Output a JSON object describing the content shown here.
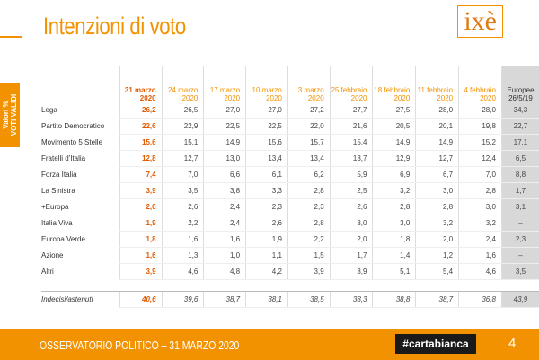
{
  "header": {
    "title": "Intenzioni di voto",
    "logo": "ixè"
  },
  "side_label": [
    "Valori %",
    "VOTI VALIDI"
  ],
  "table": {
    "columns": [
      "31 marzo 2020",
      "24 marzo 2020",
      "17 marzo 2020",
      "10 marzo 2020",
      "3 marzo 2020",
      "25 febbraio 2020",
      "18 febbraio 2020",
      "11 febbraio 2020",
      "4 febbraio 2020",
      "Europee 26/5/19"
    ],
    "rows": [
      {
        "label": "Lega",
        "values": [
          "26,2",
          "26,5",
          "27,0",
          "27,0",
          "27,2",
          "27,7",
          "27,5",
          "28,0",
          "28,0",
          "34,3"
        ]
      },
      {
        "label": "Partito Democratico",
        "values": [
          "22,6",
          "22,9",
          "22,5",
          "22,5",
          "22,0",
          "21,6",
          "20,5",
          "20,1",
          "19,8",
          "22,7"
        ]
      },
      {
        "label": "Movimento 5 Stelle",
        "values": [
          "15,6",
          "15,1",
          "14,9",
          "15,6",
          "15,7",
          "15,4",
          "14,9",
          "14,9",
          "15,2",
          "17,1"
        ]
      },
      {
        "label": "Fratelli d'Italia",
        "values": [
          "12,8",
          "12,7",
          "13,0",
          "13,4",
          "13,4",
          "13,7",
          "12,9",
          "12,7",
          "12,4",
          "6,5"
        ]
      },
      {
        "label": "Forza Italia",
        "values": [
          "7,4",
          "7,0",
          "6,6",
          "6,1",
          "6,2",
          "5,9",
          "6,9",
          "6,7",
          "7,0",
          "8,8"
        ]
      },
      {
        "label": "La Sinistra",
        "values": [
          "3,9",
          "3,5",
          "3,8",
          "3,3",
          "2,8",
          "2,5",
          "3,2",
          "3,0",
          "2,8",
          "1,7"
        ]
      },
      {
        "label": "+Europa",
        "values": [
          "2,0",
          "2,6",
          "2,4",
          "2,3",
          "2,3",
          "2,6",
          "2,8",
          "2,8",
          "3,0",
          "3,1"
        ]
      },
      {
        "label": "Italia Viva",
        "values": [
          "1,9",
          "2,2",
          "2,4",
          "2,6",
          "2,8",
          "3,0",
          "3,0",
          "3,2",
          "3,2",
          "–"
        ]
      },
      {
        "label": "Europa Verde",
        "values": [
          "1,8",
          "1,6",
          "1,6",
          "1,9",
          "2,2",
          "2,0",
          "1,8",
          "2,0",
          "2,4",
          "2,3"
        ]
      },
      {
        "label": "Azione",
        "values": [
          "1,6",
          "1,3",
          "1,0",
          "1,1",
          "1,5",
          "1,7",
          "1,4",
          "1,2",
          "1,6",
          "–"
        ]
      },
      {
        "label": "Altri",
        "values": [
          "3,9",
          "4,6",
          "4,8",
          "4,2",
          "3,9",
          "3,9",
          "5,1",
          "5,4",
          "4,6",
          "3,5"
        ]
      }
    ],
    "footer_row": {
      "label": "Indecisi/astenuti",
      "values": [
        "40,6",
        "39,6",
        "38,7",
        "38,1",
        "38,5",
        "38,3",
        "38,8",
        "38,7",
        "36,8",
        "43,9"
      ]
    }
  },
  "footer": {
    "text": "OSSERVATORIO POLITICO – 31 MARZO 2020",
    "tag": "#cartabianca",
    "page": "4"
  }
}
